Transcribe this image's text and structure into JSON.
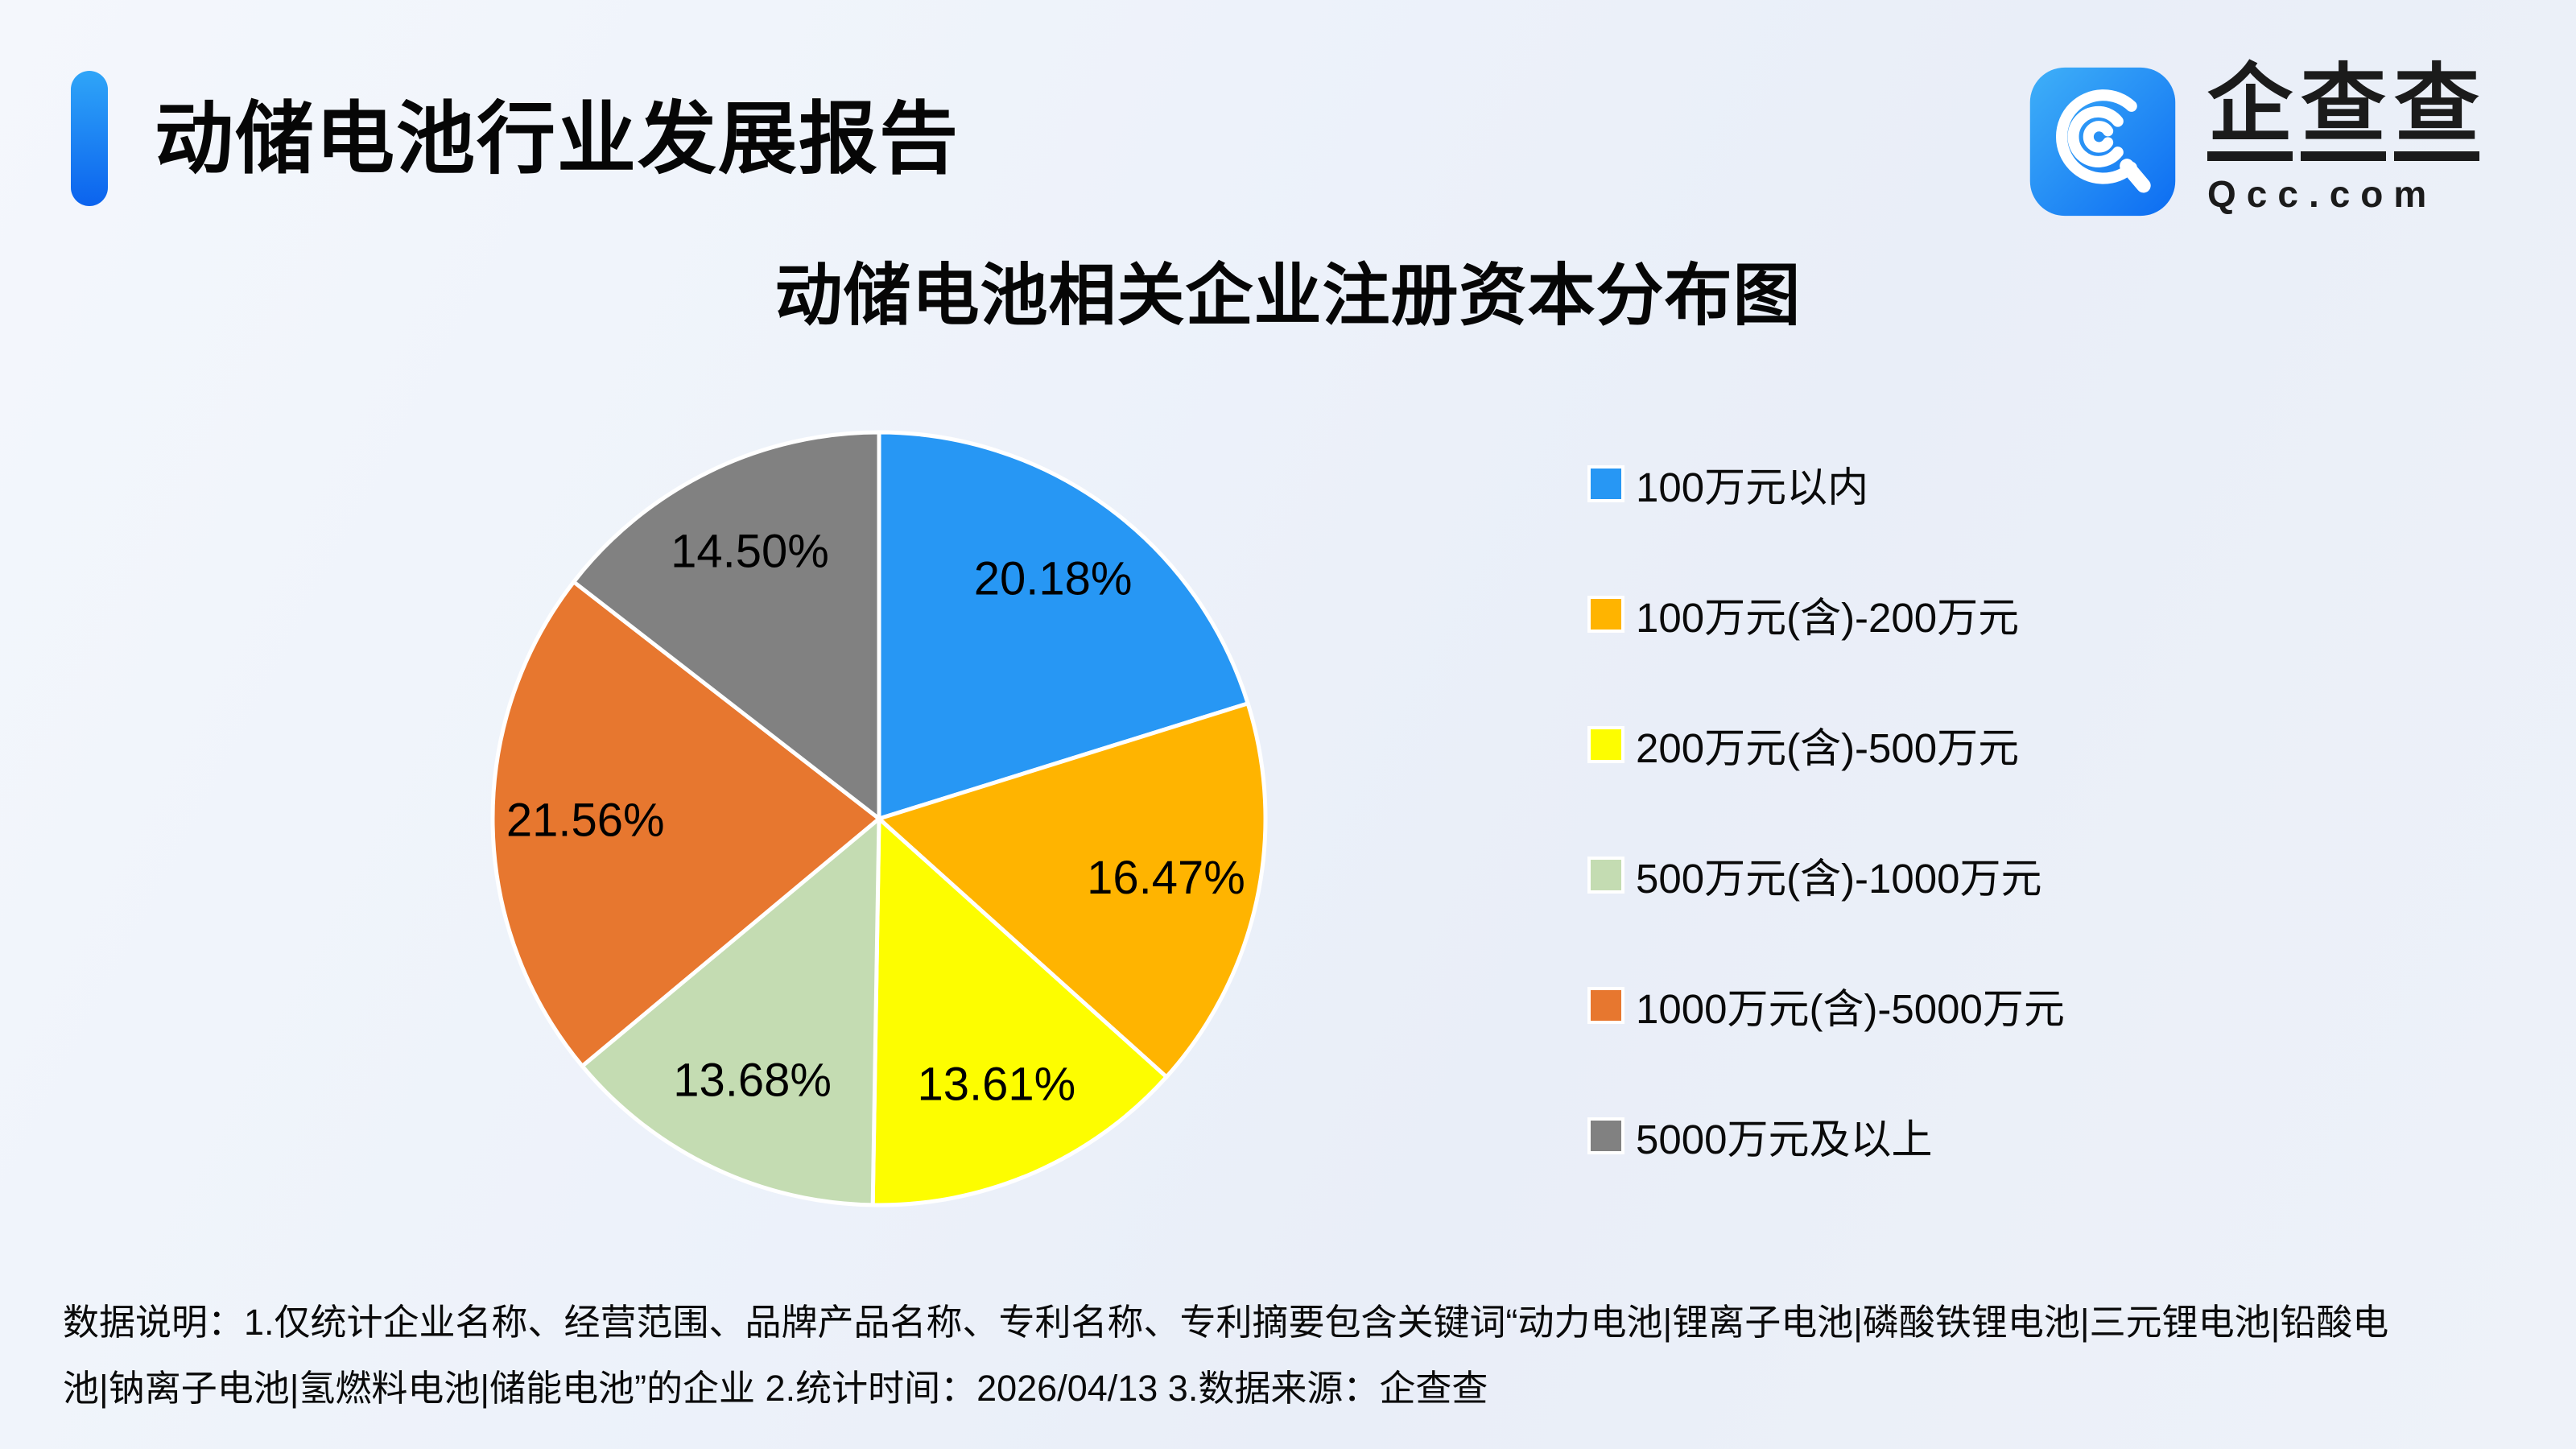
{
  "header": {
    "title": "动储电池行业发展报告",
    "accent_color": "#1677f0"
  },
  "logo": {
    "name_chars": [
      "企",
      "查",
      "查"
    ],
    "domain": "Qcc.com",
    "icon": "qcc-magnifier-icon",
    "icon_gradient": {
      "from": "#3fb0f8",
      "to": "#0c6cf2"
    }
  },
  "chart_data": {
    "type": "pie",
    "title": "动储电池相关企业注册资本分布图",
    "categories": [
      "100万元以内",
      "100万元(含)-200万元",
      "200万元(含)-500万元",
      "500万元(含)-1000万元",
      "1000万元(含)-5000万元",
      "5000万元及以上"
    ],
    "values": [
      20.18,
      16.47,
      13.61,
      13.68,
      21.56,
      14.5
    ],
    "labels": [
      "20.18%",
      "16.47%",
      "13.61%",
      "13.68%",
      "21.56%",
      "14.50%"
    ],
    "colors": [
      "#2797f4",
      "#ffb400",
      "#fdfd00",
      "#c4dcb2",
      "#e7772f",
      "#818181"
    ],
    "start_angle_deg": 0,
    "direction": "clockwise",
    "slice_border_color": "#ffffff",
    "label_color": "#000000",
    "legend_position": "right",
    "grid": false
  },
  "footer": {
    "lines": [
      "数据说明：1.仅统计企业名称、经营范围、品牌产品名称、专利名称、专利摘要包含关键词“动力电池|锂离子电池|磷酸铁锂电池|三元锂电池|铅酸电",
      "池|钠离子电池|氢燃料电池|储能电池”的企业  2.统计时间：2026/04/13  3.数据来源：企查查"
    ]
  }
}
